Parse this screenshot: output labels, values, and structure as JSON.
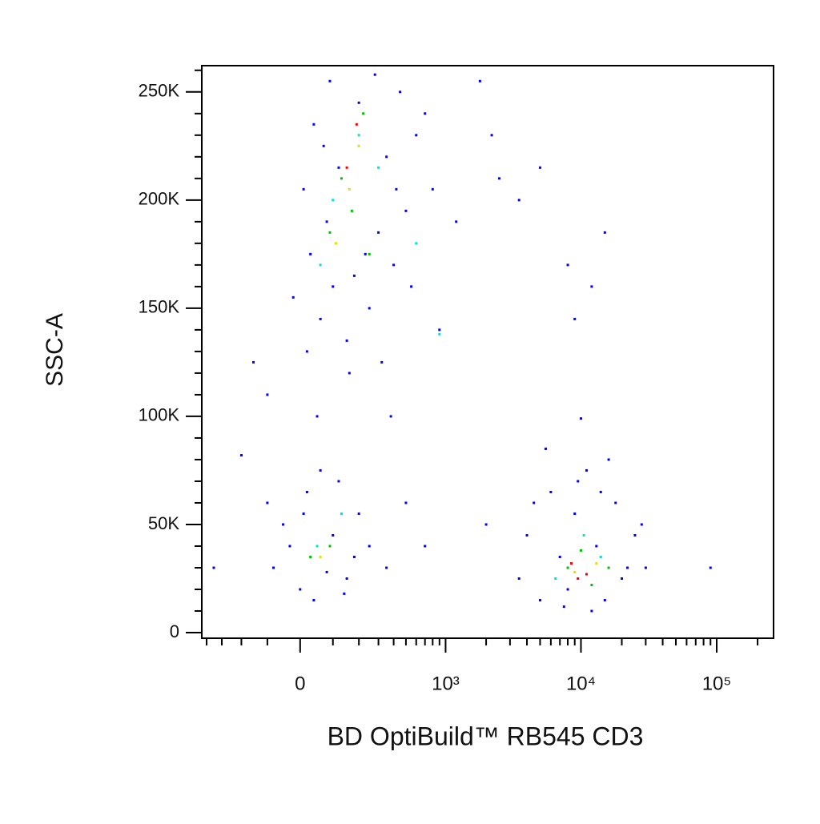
{
  "chart_data": {
    "type": "scatter",
    "x_label": "BD OptiBuild™ RB545 CD3",
    "y_label": "SSC-A",
    "xscale": "biexponential",
    "xlim": [
      -437,
      262144
    ],
    "ylim": [
      -2585,
      262144
    ],
    "xticks": [
      0,
      {
        "value": 1000,
        "label": "10³"
      },
      {
        "value": 10000,
        "label": "10⁴"
      },
      {
        "value": 100000,
        "label": "10⁵"
      }
    ],
    "xminorticks": [
      -400,
      -300,
      -200,
      -100,
      100,
      200,
      300,
      400,
      500,
      600,
      700,
      800,
      900,
      2000,
      3000,
      4000,
      5000,
      6000,
      7000,
      8000,
      9000,
      20000,
      30000,
      40000,
      50000,
      60000,
      70000,
      80000,
      90000,
      200000
    ],
    "yticks": [
      0,
      {
        "value": 50000,
        "label": "50K"
      },
      {
        "value": 100000,
        "label": "100K"
      },
      {
        "value": 150000,
        "label": "150K"
      },
      {
        "value": 200000,
        "label": "200K"
      },
      {
        "value": 250000,
        "label": "250K"
      }
    ],
    "yminorticks": [
      10000,
      20000,
      30000,
      40000,
      60000,
      70000,
      80000,
      90000,
      110000,
      120000,
      130000,
      140000,
      160000,
      170000,
      180000,
      190000,
      210000,
      220000,
      230000,
      240000,
      260000
    ],
    "series": [
      {
        "color": "#0000ff",
        "x": [
          20,
          60,
          100,
          150,
          250,
          400,
          30,
          80,
          180,
          300,
          500,
          10,
          120,
          350,
          600,
          40,
          200,
          450,
          90,
          280,
          700,
          800,
          900,
          550,
          -20,
          160,
          320,
          70,
          420,
          230,
          1800,
          2500,
          1200,
          3500,
          5000,
          8000,
          15000,
          12000,
          9000,
          2200,
          -150,
          -100,
          50,
          380,
          -80,
          -50,
          0,
          20,
          60,
          100,
          150,
          200,
          -30,
          40,
          120,
          180,
          -100,
          80,
          -200,
          250,
          500,
          700,
          350,
          -350,
          10,
          140,
          3500,
          4000,
          5000,
          6000,
          7000,
          8000,
          9000,
          11000,
          13000,
          15000,
          18000,
          22000,
          28000,
          4500,
          30000,
          90000,
          5500,
          16000,
          10000,
          12000,
          7500,
          20000,
          2000,
          9500,
          14000,
          25000
        ],
        "y": [
          130000,
          145000,
          160000,
          135000,
          150000,
          170000,
          175000,
          190000,
          165000,
          185000,
          195000,
          205000,
          215000,
          220000,
          230000,
          235000,
          245000,
          250000,
          255000,
          258000,
          240000,
          205000,
          140000,
          160000,
          155000,
          120000,
          125000,
          225000,
          205000,
          175000,
          255000,
          210000,
          190000,
          200000,
          215000,
          170000,
          185000,
          160000,
          145000,
          230000,
          125000,
          110000,
          100000,
          100000,
          30000,
          50000,
          20000,
          65000,
          75000,
          45000,
          25000,
          55000,
          40000,
          15000,
          70000,
          35000,
          60000,
          28000,
          82000,
          40000,
          60000,
          40000,
          30000,
          30000,
          55000,
          18000,
          25000,
          45000,
          15000,
          65000,
          35000,
          20000,
          55000,
          75000,
          40000,
          15000,
          60000,
          30000,
          50000,
          60000,
          30000,
          30000,
          85000,
          80000,
          99000,
          10000,
          12000,
          25000,
          50000,
          70000,
          65000,
          45000
        ]
      },
      {
        "color": "#00e0e0",
        "x": [
          100,
          200,
          60,
          300,
          900,
          50,
          130,
          6500,
          14000,
          10500,
          600
        ],
        "y": [
          200000,
          230000,
          170000,
          215000,
          138000,
          40000,
          55000,
          25000,
          35000,
          45000,
          180000
        ]
      },
      {
        "color": "#00c000",
        "x": [
          130,
          220,
          90,
          170,
          250,
          30,
          90,
          8000,
          12000,
          10000,
          16000
        ],
        "y": [
          210000,
          240000,
          185000,
          195000,
          175000,
          35000,
          40000,
          30000,
          22000,
          38000,
          30000
        ]
      },
      {
        "color": "#e0e000",
        "x": [
          160,
          200,
          110,
          9000,
          13000,
          60
        ],
        "y": [
          205000,
          225000,
          180000,
          28000,
          32000,
          35000
        ]
      },
      {
        "color": "#ff0000",
        "x": [
          150,
          190,
          11000,
          9500,
          8500
        ],
        "y": [
          215000,
          235000,
          27000,
          25000,
          32000
        ]
      }
    ]
  }
}
